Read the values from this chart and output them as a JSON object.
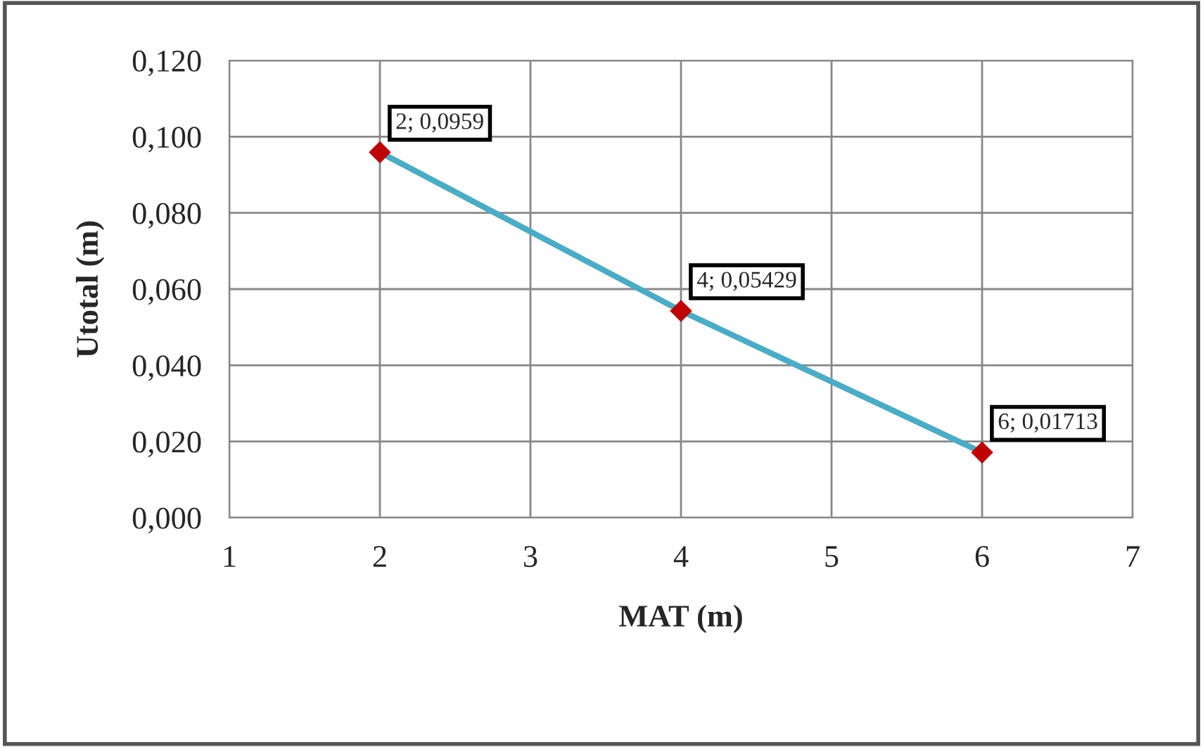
{
  "chart_data": {
    "type": "line",
    "xlabel": "MAT (m)",
    "ylabel": "Utotal (m)",
    "x": [
      2,
      4,
      6
    ],
    "series": [
      {
        "color": "#4bacc6",
        "values": [
          0.0959,
          0.05429,
          0.01713
        ],
        "value_labels": [
          "2; 0,0959",
          "4; 0,05429",
          "6; 0,01713"
        ]
      }
    ],
    "xlim": [
      1,
      7
    ],
    "xticks": [
      1,
      2,
      3,
      4,
      5,
      6,
      7
    ],
    "ylim": [
      0,
      0.12
    ],
    "yticks": [
      {
        "value": 0,
        "label": "0,000"
      },
      {
        "value": 0.02,
        "label": "0,020"
      },
      {
        "value": 0.04,
        "label": "0,040"
      },
      {
        "value": 0.06,
        "label": "0,060"
      },
      {
        "value": 0.08,
        "label": "0,080"
      },
      {
        "value": 0.1,
        "label": "0,100"
      },
      {
        "value": 0.12,
        "label": "0,120"
      }
    ],
    "grid": true,
    "marker": "diamond",
    "line_style": "solid",
    "legend": false
  }
}
